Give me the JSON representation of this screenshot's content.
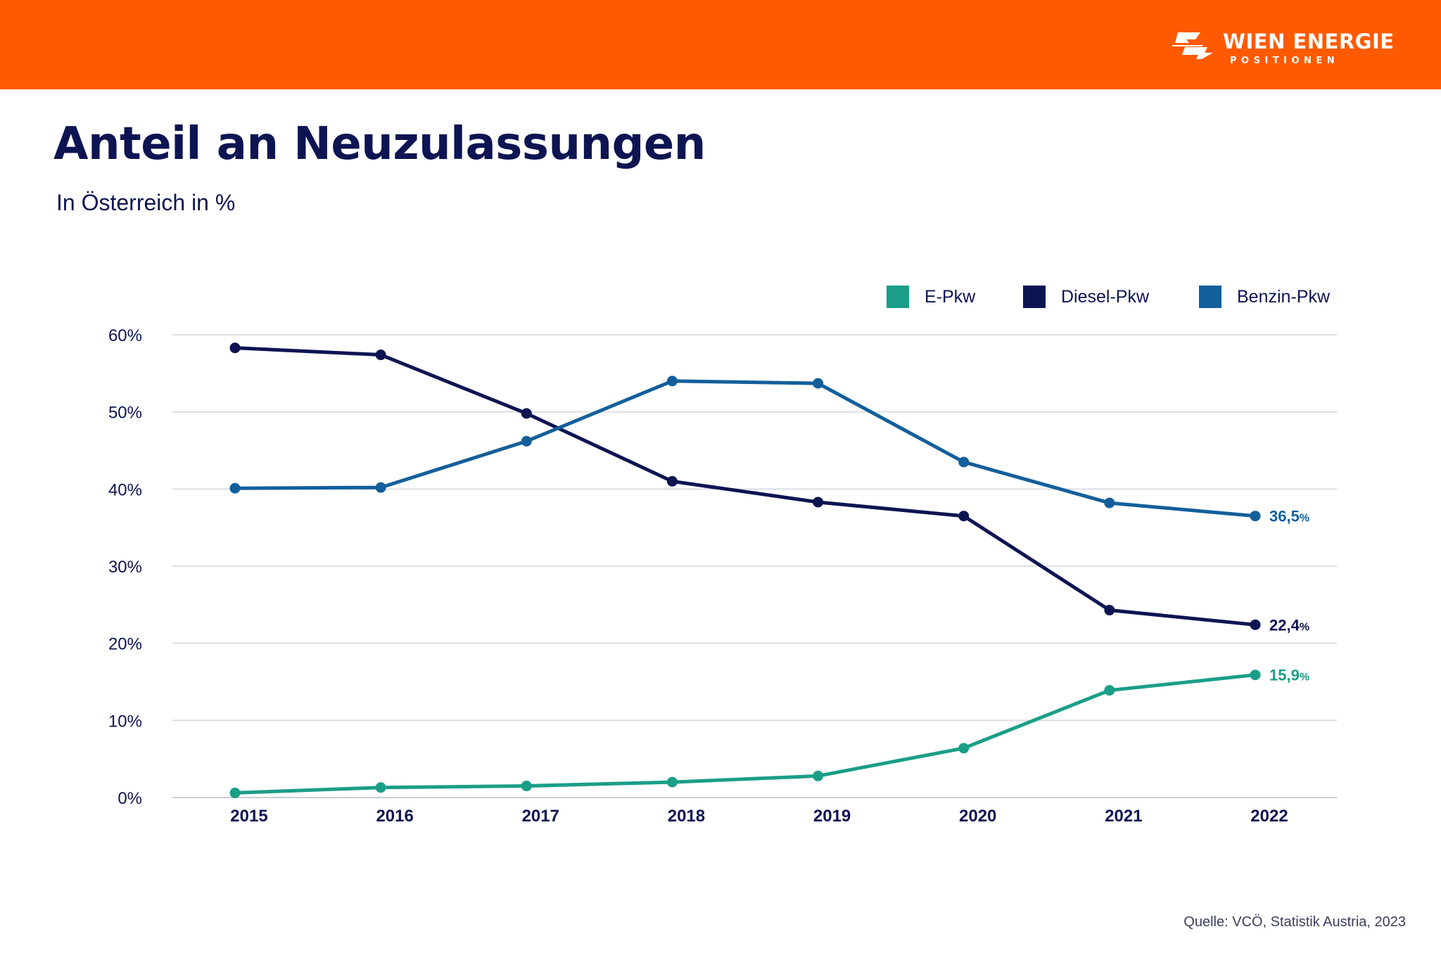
{
  "header": {
    "brand_name": "WIEN ENERGIE",
    "brand_sub": "POSITIONEN",
    "bar_color": "#ff5a00",
    "logo_icon": "wien-energie-logo-icon"
  },
  "title": "Anteil an Neuzulassungen",
  "subtitle": "In Österreich in %",
  "source": "Quelle: VCÖ, Statistik Austria, 2023",
  "chart_data": {
    "type": "line",
    "x": [
      "2015",
      "2016",
      "2017",
      "2018",
      "2019",
      "2020",
      "2021",
      "2022"
    ],
    "ylim": [
      0,
      60
    ],
    "yticks": [
      0,
      10,
      20,
      30,
      40,
      50,
      60
    ],
    "ytick_labels": [
      "0%",
      "10%",
      "20%",
      "30%",
      "40%",
      "50%",
      "60%"
    ],
    "grid": true,
    "legend_position": "top-right",
    "series": [
      {
        "name": "E-Pkw",
        "color": "#1a9e87",
        "values": [
          0.6,
          1.3,
          1.5,
          2.0,
          2.8,
          6.4,
          13.9,
          15.9
        ],
        "end_label_value": "15,9",
        "end_label_unit": "%"
      },
      {
        "name": "Diesel-Pkw",
        "color": "#0d1452",
        "values": [
          58.3,
          57.4,
          49.8,
          41.0,
          38.3,
          36.5,
          24.3,
          22.4
        ],
        "end_label_value": "22,4",
        "end_label_unit": "%"
      },
      {
        "name": "Benzin-Pkw",
        "color": "#135f9b",
        "values": [
          40.1,
          40.2,
          46.2,
          54.0,
          53.7,
          43.5,
          38.2,
          36.5
        ],
        "end_label_value": "36,5",
        "end_label_unit": "%"
      }
    ]
  }
}
